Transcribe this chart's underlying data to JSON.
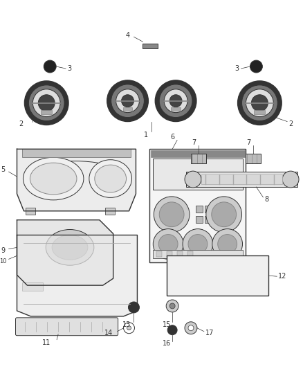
{
  "bg_color": "#ffffff",
  "fig_width": 4.38,
  "fig_height": 5.33,
  "dpi": 100,
  "line_color": "#333333",
  "gray_dark": "#555555",
  "gray_med": "#999999",
  "gray_light": "#cccccc",
  "gray_xlight": "#e8e8e8",
  "white": "#ffffff"
}
